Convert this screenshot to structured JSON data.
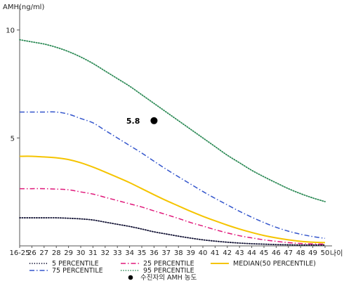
{
  "chart_data": {
    "type": "line",
    "ylabel": "AMH(ng/ml)",
    "xlabel": "나이",
    "ylim": [
      0,
      11
    ],
    "yticks": [
      5,
      10
    ],
    "x": [
      "16-25",
      "26",
      "27",
      "28",
      "29",
      "30",
      "31",
      "32",
      "33",
      "34",
      "35",
      "36",
      "37",
      "38",
      "39",
      "40",
      "41",
      "42",
      "43",
      "44",
      "45",
      "46",
      "47",
      "48",
      "49",
      "50"
    ],
    "series": [
      {
        "name": "5 PERCENTILE",
        "color": "#111133",
        "dash": "dotted",
        "values": [
          1.3,
          1.3,
          1.3,
          1.3,
          1.28,
          1.25,
          1.2,
          1.1,
          1.0,
          0.9,
          0.78,
          0.65,
          0.55,
          0.45,
          0.36,
          0.28,
          0.22,
          0.17,
          0.13,
          0.1,
          0.08,
          0.06,
          0.05,
          0.04,
          0.04,
          0.04
        ]
      },
      {
        "name": "25 PERCENTILE",
        "color": "#e0187a",
        "dash": "dashdot",
        "values": [
          2.65,
          2.65,
          2.65,
          2.63,
          2.6,
          2.5,
          2.4,
          2.25,
          2.1,
          1.95,
          1.8,
          1.62,
          1.45,
          1.27,
          1.08,
          0.92,
          0.75,
          0.6,
          0.47,
          0.37,
          0.28,
          0.21,
          0.15,
          0.11,
          0.09,
          0.08
        ]
      },
      {
        "name": "MEDIAN(50 PERCENTILE)",
        "color": "#f5c400",
        "dash": "solid",
        "values": [
          4.15,
          4.15,
          4.12,
          4.08,
          4.0,
          3.85,
          3.65,
          3.42,
          3.18,
          2.93,
          2.65,
          2.37,
          2.1,
          1.85,
          1.6,
          1.37,
          1.16,
          0.96,
          0.78,
          0.62,
          0.48,
          0.37,
          0.28,
          0.21,
          0.17,
          0.15
        ]
      },
      {
        "name": "75 PERCENTILE",
        "color": "#3355cc",
        "dash": "dashdot",
        "values": [
          6.2,
          6.2,
          6.2,
          6.2,
          6.1,
          5.9,
          5.7,
          5.35,
          5.0,
          4.65,
          4.3,
          3.92,
          3.55,
          3.2,
          2.86,
          2.52,
          2.2,
          1.9,
          1.6,
          1.33,
          1.08,
          0.86,
          0.68,
          0.54,
          0.43,
          0.35
        ]
      },
      {
        "name": "95 PERCENTILE",
        "color": "#2e8b57",
        "dash": "dotted",
        "values": [
          9.55,
          9.45,
          9.35,
          9.2,
          9.0,
          8.75,
          8.45,
          8.1,
          7.75,
          7.4,
          7.0,
          6.6,
          6.2,
          5.8,
          5.4,
          5.0,
          4.6,
          4.2,
          3.85,
          3.5,
          3.2,
          2.92,
          2.65,
          2.42,
          2.22,
          2.05
        ]
      }
    ],
    "marker": {
      "name": "수진자의 AMH 농도",
      "x": "36",
      "y": 5.8,
      "label": "5.8",
      "color": "#000000"
    },
    "legend_position": "bottom",
    "grid": false
  }
}
